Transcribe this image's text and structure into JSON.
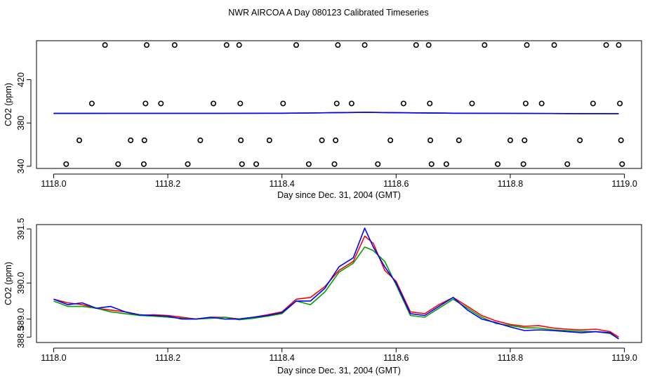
{
  "title": "NWR AIRCOA A  Day 080123  Calibrated Timeseries",
  "chart_data": [
    {
      "type": "scatter",
      "xlabel": "Day since Dec. 31, 2004 (GMT)",
      "ylabel": "CO2 (ppm)",
      "xlim": [
        1117.97,
        1119.03
      ],
      "ylim": [
        338,
        456
      ],
      "xticks": [
        1118.0,
        1118.2,
        1118.4,
        1118.6,
        1118.8,
        1119.0
      ],
      "xtick_labels": [
        "1118.0",
        "1118.2",
        "1118.4",
        "1118.6",
        "1118.8",
        "1119.0"
      ],
      "yticks": [
        340,
        380,
        420
      ],
      "ytick_labels": [
        "340",
        "380",
        "420"
      ],
      "grid": false,
      "points": [
        {
          "x": 1118.022,
          "y": 342
        },
        {
          "x": 1118.045,
          "y": 364
        },
        {
          "x": 1118.067,
          "y": 398
        },
        {
          "x": 1118.09,
          "y": 452
        },
        {
          "x": 1118.113,
          "y": 342
        },
        {
          "x": 1118.135,
          "y": 364
        },
        {
          "x": 1118.158,
          "y": 342
        },
        {
          "x": 1118.159,
          "y": 364
        },
        {
          "x": 1118.161,
          "y": 398
        },
        {
          "x": 1118.163,
          "y": 452
        },
        {
          "x": 1118.188,
          "y": 398
        },
        {
          "x": 1118.212,
          "y": 452
        },
        {
          "x": 1118.235,
          "y": 342
        },
        {
          "x": 1118.257,
          "y": 364
        },
        {
          "x": 1118.28,
          "y": 398
        },
        {
          "x": 1118.303,
          "y": 452
        },
        {
          "x": 1118.325,
          "y": 452
        },
        {
          "x": 1118.327,
          "y": 398
        },
        {
          "x": 1118.328,
          "y": 364
        },
        {
          "x": 1118.33,
          "y": 342
        },
        {
          "x": 1118.355,
          "y": 342
        },
        {
          "x": 1118.378,
          "y": 364
        },
        {
          "x": 1118.402,
          "y": 398
        },
        {
          "x": 1118.425,
          "y": 452
        },
        {
          "x": 1118.447,
          "y": 342
        },
        {
          "x": 1118.47,
          "y": 364
        },
        {
          "x": 1118.492,
          "y": 342
        },
        {
          "x": 1118.494,
          "y": 364
        },
        {
          "x": 1118.496,
          "y": 398
        },
        {
          "x": 1118.498,
          "y": 452
        },
        {
          "x": 1118.522,
          "y": 398
        },
        {
          "x": 1118.545,
          "y": 452
        },
        {
          "x": 1118.568,
          "y": 342
        },
        {
          "x": 1118.59,
          "y": 364
        },
        {
          "x": 1118.613,
          "y": 398
        },
        {
          "x": 1118.635,
          "y": 452
        },
        {
          "x": 1118.657,
          "y": 452
        },
        {
          "x": 1118.659,
          "y": 398
        },
        {
          "x": 1118.66,
          "y": 364
        },
        {
          "x": 1118.662,
          "y": 342
        },
        {
          "x": 1118.688,
          "y": 342
        },
        {
          "x": 1118.71,
          "y": 364
        },
        {
          "x": 1118.733,
          "y": 398
        },
        {
          "x": 1118.755,
          "y": 452
        },
        {
          "x": 1118.778,
          "y": 342
        },
        {
          "x": 1118.8,
          "y": 364
        },
        {
          "x": 1118.823,
          "y": 342
        },
        {
          "x": 1118.825,
          "y": 364
        },
        {
          "x": 1118.827,
          "y": 398
        },
        {
          "x": 1118.829,
          "y": 452
        },
        {
          "x": 1118.855,
          "y": 398
        },
        {
          "x": 1118.877,
          "y": 452
        },
        {
          "x": 1118.9,
          "y": 342
        },
        {
          "x": 1118.922,
          "y": 364
        },
        {
          "x": 1118.945,
          "y": 398
        },
        {
          "x": 1118.968,
          "y": 452
        },
        {
          "x": 1118.99,
          "y": 452
        },
        {
          "x": 1118.992,
          "y": 398
        },
        {
          "x": 1118.994,
          "y": 364
        },
        {
          "x": 1118.996,
          "y": 342
        }
      ],
      "series": [
        {
          "color": "#ff0000",
          "x": [
            1118.0,
            1118.1,
            1118.2,
            1118.3,
            1118.4,
            1118.45,
            1118.5,
            1118.55,
            1118.6,
            1118.7,
            1118.8,
            1118.9,
            1118.99
          ],
          "y": [
            388.8,
            388.9,
            388.9,
            388.9,
            389.0,
            389.2,
            389.6,
            389.8,
            389.5,
            389.0,
            388.9,
            388.7,
            388.6
          ]
        },
        {
          "color": "#00a000",
          "x": [
            1118.0,
            1118.1,
            1118.2,
            1118.3,
            1118.4,
            1118.45,
            1118.5,
            1118.55,
            1118.6,
            1118.7,
            1118.8,
            1118.9,
            1118.99
          ],
          "y": [
            388.8,
            388.9,
            388.9,
            388.9,
            389.0,
            389.2,
            389.6,
            389.8,
            389.5,
            389.0,
            388.9,
            388.7,
            388.6
          ]
        },
        {
          "color": "#0000ff",
          "x": [
            1118.0,
            1118.1,
            1118.2,
            1118.3,
            1118.4,
            1118.45,
            1118.5,
            1118.55,
            1118.6,
            1118.7,
            1118.8,
            1118.9,
            1118.99
          ],
          "y": [
            388.8,
            388.9,
            388.9,
            388.9,
            389.0,
            389.2,
            389.6,
            389.8,
            389.5,
            389.0,
            388.9,
            388.7,
            388.6
          ]
        }
      ]
    },
    {
      "type": "line",
      "xlabel": "Day since Dec. 31, 2004 (GMT)",
      "ylabel": "CO2 (ppm)",
      "xlim": [
        1117.97,
        1119.03
      ],
      "ylim": [
        388.35,
        391.62
      ],
      "xticks": [
        1118.0,
        1118.2,
        1118.4,
        1118.6,
        1118.8,
        1119.0
      ],
      "xtick_labels": [
        "1118.0",
        "1118.2",
        "1118.4",
        "1118.6",
        "1118.8",
        "1119.0"
      ],
      "yticks": [
        388.5,
        389.0,
        390.0,
        391.5
      ],
      "ytick_labels": [
        "388.5",
        "389.0",
        "390.0",
        "391.5"
      ],
      "grid": false,
      "x": [
        1118.0,
        1118.025,
        1118.05,
        1118.075,
        1118.1,
        1118.125,
        1118.15,
        1118.175,
        1118.2,
        1118.225,
        1118.25,
        1118.275,
        1118.3,
        1118.325,
        1118.35,
        1118.375,
        1118.4,
        1118.425,
        1118.45,
        1118.475,
        1118.5,
        1118.525,
        1118.545,
        1118.56,
        1118.58,
        1118.6,
        1118.625,
        1118.65,
        1118.675,
        1118.7,
        1118.725,
        1118.75,
        1118.775,
        1118.8,
        1118.825,
        1118.85,
        1118.875,
        1118.9,
        1118.925,
        1118.95,
        1118.975,
        1118.99
      ],
      "series": [
        {
          "color": "#ff0000",
          "values": [
            389.55,
            389.45,
            389.4,
            389.3,
            389.25,
            389.2,
            389.1,
            389.12,
            389.1,
            389.05,
            389.0,
            389.05,
            389.05,
            389.0,
            389.05,
            389.12,
            389.2,
            389.55,
            389.6,
            389.9,
            390.35,
            390.6,
            391.3,
            391.1,
            390.35,
            390.05,
            389.2,
            389.15,
            389.4,
            389.6,
            389.35,
            389.1,
            388.95,
            388.85,
            388.8,
            388.82,
            388.75,
            388.72,
            388.7,
            388.72,
            388.65,
            388.5
          ]
        },
        {
          "color": "#00a000",
          "values": [
            389.5,
            389.35,
            389.35,
            389.3,
            389.2,
            389.15,
            389.1,
            389.08,
            389.05,
            389.02,
            389.0,
            389.02,
            389.05,
            388.98,
            389.02,
            389.08,
            389.15,
            389.5,
            389.4,
            389.75,
            390.3,
            390.55,
            391.0,
            390.9,
            390.6,
            389.95,
            389.1,
            389.05,
            389.3,
            389.55,
            389.3,
            389.05,
            388.88,
            388.82,
            388.76,
            388.75,
            388.7,
            388.68,
            388.66,
            388.65,
            388.6,
            388.45
          ]
        },
        {
          "color": "#0000ff",
          "values": [
            389.55,
            389.4,
            389.45,
            389.3,
            389.35,
            389.2,
            389.12,
            389.1,
            389.08,
            389.0,
            389.0,
            389.05,
            389.0,
            389.0,
            389.05,
            389.1,
            389.18,
            389.5,
            389.5,
            389.85,
            390.45,
            390.7,
            391.52,
            391.0,
            390.45,
            390.0,
            389.15,
            389.1,
            389.35,
            389.6,
            389.25,
            389.0,
            388.9,
            388.78,
            388.68,
            388.7,
            388.68,
            388.65,
            388.62,
            388.65,
            388.62,
            388.45
          ]
        }
      ]
    }
  ]
}
